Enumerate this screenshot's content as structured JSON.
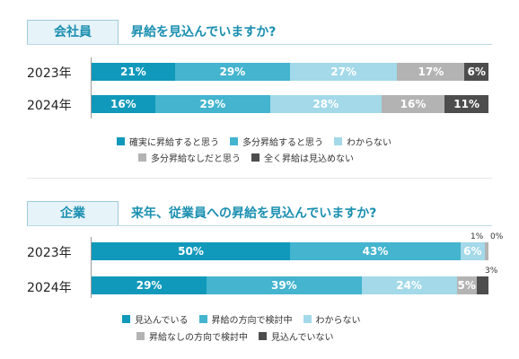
{
  "chart_data": [
    {
      "type": "bar",
      "stacked": true,
      "orientation": "horizontal",
      "tag": "会社員",
      "title": "昇給を見込んでいますか?",
      "categories": [
        "2023年",
        "2024年"
      ],
      "series": [
        {
          "name": "確実に昇給すると思う",
          "color": "#1199bb",
          "values": [
            21,
            16
          ]
        },
        {
          "name": "多分昇給すると思う",
          "color": "#44b4cf",
          "values": [
            29,
            29
          ]
        },
        {
          "name": "わからない",
          "color": "#a3d9e9",
          "values": [
            27,
            28
          ]
        },
        {
          "name": "多分昇給なしだと思う",
          "color": "#b3b3b3",
          "values": [
            17,
            16
          ]
        },
        {
          "name": "全く昇給は見込めない",
          "color": "#4d4d4d",
          "values": [
            6,
            11
          ]
        }
      ],
      "xlim": [
        0,
        100
      ],
      "unit": "%"
    },
    {
      "type": "bar",
      "stacked": true,
      "orientation": "horizontal",
      "tag": "企業",
      "title": "来年、従業員への昇給を見込んでいますか?",
      "categories": [
        "2023年",
        "2024年"
      ],
      "series": [
        {
          "name": "見込んでいる",
          "color": "#1199bb",
          "values": [
            50,
            29
          ]
        },
        {
          "name": "昇給の方向で検討中",
          "color": "#44b4cf",
          "values": [
            43,
            39
          ]
        },
        {
          "name": "わからない",
          "color": "#a3d9e9",
          "values": [
            6,
            24
          ]
        },
        {
          "name": "昇給なしの方向で検討中",
          "color": "#b3b3b3",
          "values": [
            1,
            5
          ]
        },
        {
          "name": "見込んでいない",
          "color": "#4d4d4d",
          "values": [
            0,
            3
          ]
        }
      ],
      "xlim": [
        0,
        100
      ],
      "unit": "%"
    }
  ]
}
